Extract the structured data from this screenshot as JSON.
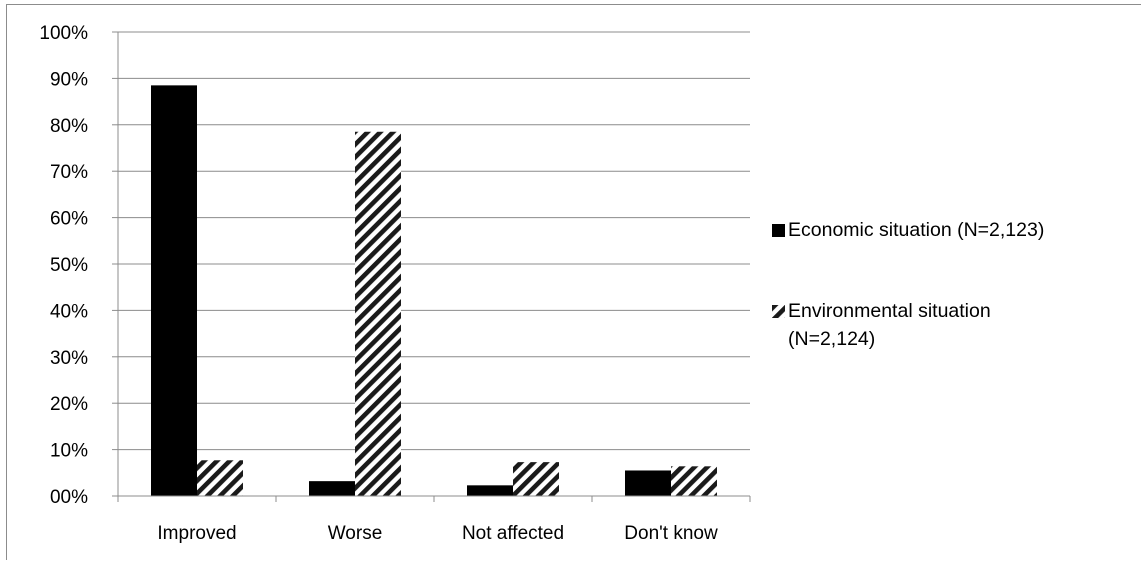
{
  "chart_data": {
    "type": "bar",
    "categories": [
      "Improved",
      "Worse",
      "Not affected",
      "Don't know"
    ],
    "series": [
      {
        "name": "Economic situation (N=2,123)",
        "values": [
          88.5,
          3.2,
          2.3,
          5.5
        ],
        "fill": "#000000"
      },
      {
        "name": "Environmental situation (N=2,124)",
        "values": [
          7.7,
          78.5,
          7.3,
          6.4
        ],
        "fill": "diagonal-hatch"
      }
    ],
    "yticks": [
      "00%",
      "10%",
      "20%",
      "30%",
      "40%",
      "50%",
      "60%",
      "70%",
      "80%",
      "90%",
      "100%"
    ],
    "ylim": [
      0,
      100
    ],
    "grid": true,
    "legend_position": "right"
  }
}
